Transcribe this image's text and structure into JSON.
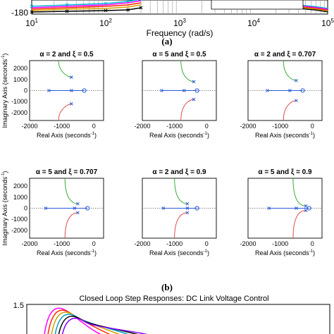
{
  "figure_labels": {
    "a": "(a)",
    "b": "(b)"
  },
  "chart_data": [
    {
      "id": "bode",
      "type": "line",
      "ytick_labels": [
        "-180"
      ],
      "xtick_labels": [
        "10",
        "10",
        "10",
        "10",
        "10"
      ],
      "xtick_exponents": [
        "1",
        "2",
        "3",
        "4",
        "5"
      ],
      "xlabel": "Frequency  (rad/s)",
      "x_scale": "log",
      "xlim": [
        10,
        100000
      ],
      "y_visible_value": -180,
      "legend": "box near top-right",
      "grid": "vertical lines",
      "series": [
        {
          "color": "#00b7d6",
          "marker": "x",
          "values": [
            -170,
            -168,
            -166,
            -163,
            -160
          ]
        },
        {
          "color": "#ff00ff",
          "marker": "none",
          "values": [
            -172,
            -170,
            -168,
            -165,
            -162
          ]
        },
        {
          "color": "#ff2a00",
          "marker": "none",
          "values": [
            -174,
            -172,
            -170,
            -168,
            -165
          ]
        },
        {
          "color": "#d4a000",
          "marker": "none",
          "values": [
            -176,
            -174,
            -173,
            -171,
            -168
          ]
        },
        {
          "color": "#000000",
          "marker": "x",
          "values": [
            -178,
            -177,
            -176,
            -175,
            -172
          ]
        }
      ]
    },
    {
      "id": "rootlocus",
      "type": "scatter",
      "xlabel": "Real Axis (seconds",
      "ylabel": "Imaginary Axis (seconds",
      "axis_unit_exponent": "-1",
      "xticks": [
        "-2000",
        "-1000",
        "0"
      ],
      "yticks": [
        "2000",
        "1000",
        "0",
        "-1000",
        "-2000"
      ],
      "xlim": [
        -2000,
        300
      ],
      "ylim": [
        -2700,
        2700
      ],
      "panels": [
        {
          "alpha": "2",
          "xi": "0.5",
          "title_left": "α = 2  and  ξ = 0.5",
          "poles": [
            [
              -1400,
              0
            ],
            [
              -700,
              0
            ]
          ],
          "zero": [
            -300,
            0
          ],
          "branch_top_end": [
            -700,
            1200
          ],
          "branch_bot_end": [
            -700,
            -1200
          ]
        },
        {
          "alpha": "5",
          "xi": "0.5",
          "title_left": "α = 5  and  ξ = 0.5",
          "poles": [
            [
              -1400,
              0
            ],
            [
              -700,
              0
            ]
          ],
          "zero": [
            -300,
            0
          ],
          "branch_top_end": [
            -400,
            800
          ],
          "branch_bot_end": [
            -400,
            -800
          ]
        },
        {
          "alpha": "2",
          "xi": "0.707",
          "title_left": "α = 2  and  ξ = 0.707",
          "poles": [
            [
              -1400,
              0
            ],
            [
              -700,
              0
            ]
          ],
          "zero": [
            -300,
            0
          ],
          "branch_top_end": [
            -500,
            900
          ],
          "branch_bot_end": [
            -500,
            -900
          ]
        },
        {
          "alpha": "5",
          "xi": "0.707",
          "title_left": "α = 5  and  ξ = 0.707",
          "poles": [
            [
              -1500,
              0
            ],
            [
              -600,
              0
            ]
          ],
          "zero": [
            -200,
            0
          ],
          "branch_top_end": [
            -500,
            400
          ],
          "branch_bot_end": [
            -500,
            -400
          ]
        },
        {
          "alpha": "2",
          "xi": "0.9",
          "title_left": "α = 2  and  ξ = 0.9",
          "poles": [
            [
              -1350,
              0
            ],
            [
              -600,
              0
            ]
          ],
          "zero": [
            -300,
            0
          ],
          "branch_top_end": [
            -600,
            400
          ],
          "branch_bot_end": [
            -600,
            -400
          ]
        },
        {
          "alpha": "5",
          "xi": "0.9",
          "title_left": "α = 5  and  ξ = 0.9",
          "poles": [
            [
              -1350,
              0
            ],
            [
              -500,
              0
            ]
          ],
          "zero": [
            -100,
            0
          ],
          "branch_top_end": [
            -200,
            200
          ],
          "branch_bot_end": [
            -200,
            -200
          ]
        }
      ]
    },
    {
      "id": "step",
      "type": "line",
      "title": "Closed Loop Step Responses: DC Link Voltage Control",
      "yticks": [
        "1.5"
      ],
      "y_visible_value": 1.5,
      "series": [
        {
          "color": "#ff00ff"
        },
        {
          "color": "#ff2a00"
        },
        {
          "color": "#d4a000"
        },
        {
          "color": "#00a0c0"
        },
        {
          "color": "#000000"
        },
        {
          "color": "#8a00ff"
        }
      ]
    }
  ]
}
